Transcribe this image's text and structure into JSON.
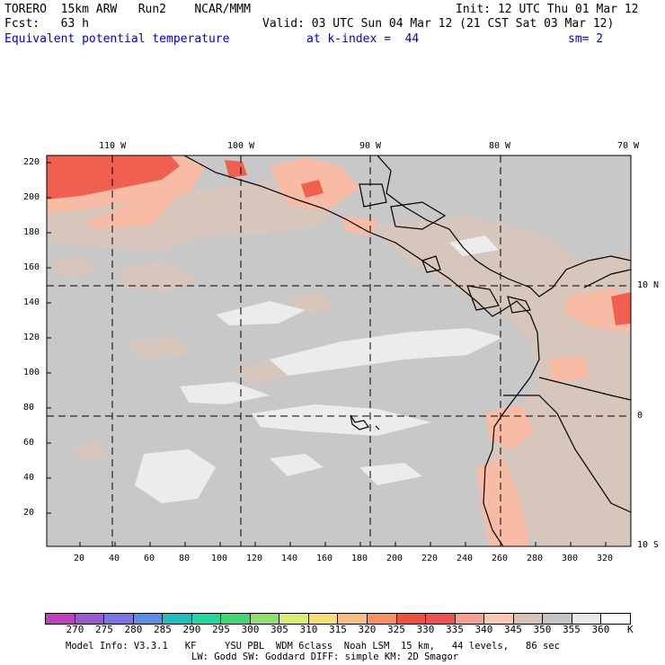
{
  "header": {
    "model": "TORERO  15km ARW   Run2    NCAR/MMM",
    "init": "Init: 12 UTC Thu 01 Mar 12",
    "fcst": "Fcst:   63 h",
    "valid": "Valid: 03 UTC Sun 04 Mar 12 (21 CST Sat 03 Mar 12)",
    "field": "Equivalent potential temperature",
    "level": "at k-index =  44",
    "smooth": "sm= 2",
    "color": "#0000c8"
  },
  "map": {
    "lon_labels": [
      "110 W",
      "100 W",
      "90 W",
      "80 W",
      "70 W"
    ],
    "lat_labels": [
      "10 N",
      "0",
      "10 S"
    ],
    "y_ticks": [
      "220",
      "200",
      "180",
      "160",
      "140",
      "120",
      "100",
      "80",
      "60",
      "40",
      "20"
    ],
    "x_ticks": [
      "20",
      "40",
      "60",
      "80",
      "100",
      "120",
      "140",
      "160",
      "180",
      "200",
      "220",
      "240",
      "260",
      "280",
      "300",
      "320"
    ]
  },
  "colorbar": {
    "unit": "K",
    "levels": [
      "270",
      "275",
      "280",
      "285",
      "290",
      "295",
      "300",
      "305",
      "310",
      "315",
      "320",
      "325",
      "330",
      "335",
      "340",
      "345",
      "350",
      "355",
      "360"
    ],
    "colors": [
      "#c040c0",
      "#9a5ad2",
      "#7f74e6",
      "#5a8ee6",
      "#20c0c0",
      "#20d8a0",
      "#40d870",
      "#90e070",
      "#d8f070",
      "#f8e070",
      "#f8c080",
      "#f89060",
      "#f05040",
      "#f05050",
      "#f8a090",
      "#f8c8b0",
      "#d8c4b8",
      "#c4c4c4",
      "#e8e8e8",
      "#ffffff"
    ]
  },
  "footer": {
    "line1": "Model Info: V3.3.1   KF     YSU PBL  WDM 6class  Noah LSM  15 km,   44 levels,   86 sec",
    "line2": "LW: Godd SW: Goddard DIFF: simple KM: 2D Smagor"
  }
}
